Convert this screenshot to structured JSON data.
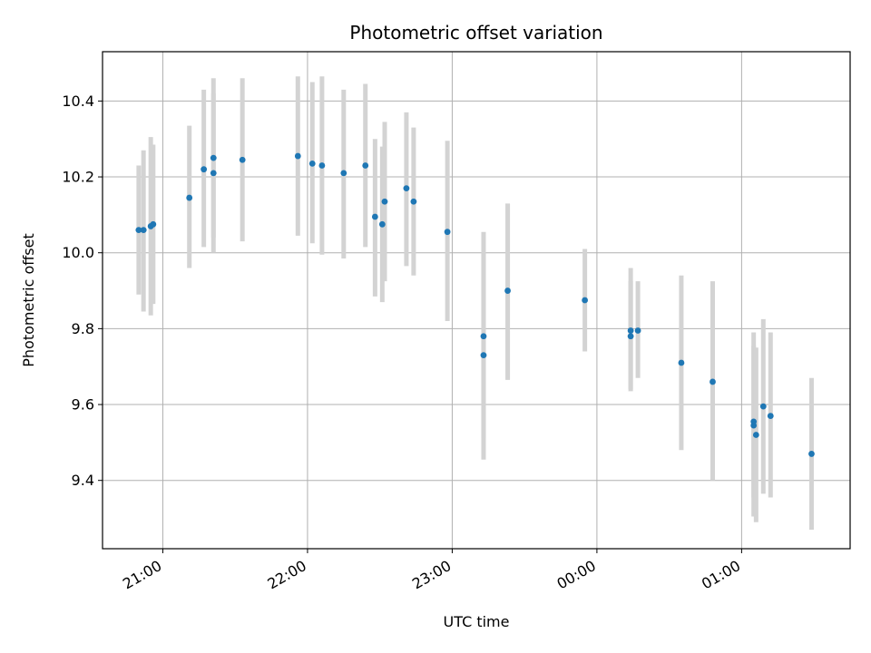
{
  "chart_data": {
    "type": "scatter",
    "title": "Photometric offset variation",
    "xlabel": "UTC time",
    "ylabel": "Photometric offset",
    "x_scale": "time",
    "xlim": [
      "20:35",
      "01:45"
    ],
    "ylim": [
      9.22,
      10.53
    ],
    "grid": true,
    "x_ticks": [
      {
        "value": "21:00",
        "label": "21:00"
      },
      {
        "value": "22:00",
        "label": "22:00"
      },
      {
        "value": "23:00",
        "label": "23:00"
      },
      {
        "value": "00:00",
        "label": "00:00"
      },
      {
        "value": "01:00",
        "label": "01:00"
      }
    ],
    "y_ticks": [
      {
        "value": 9.4,
        "label": "9.4"
      },
      {
        "value": 9.6,
        "label": "9.6"
      },
      {
        "value": 9.8,
        "label": "9.8"
      },
      {
        "value": 10.0,
        "label": "10.0"
      },
      {
        "value": 10.2,
        "label": "10.2"
      },
      {
        "value": 10.4,
        "label": "10.4"
      }
    ],
    "colors": {
      "point": "#1f77b4",
      "errorbar": "#d3d3d3",
      "grid": "#b0b0b0"
    },
    "points": [
      {
        "x": "20:50",
        "y": 10.06,
        "ylow": 9.89,
        "yhigh": 10.23
      },
      {
        "x": "20:52",
        "y": 10.06,
        "ylow": 9.845,
        "yhigh": 10.27
      },
      {
        "x": "20:55",
        "y": 10.07,
        "ylow": 9.835,
        "yhigh": 10.305
      },
      {
        "x": "20:56",
        "y": 10.075,
        "ylow": 9.865,
        "yhigh": 10.285
      },
      {
        "x": "21:11",
        "y": 10.145,
        "ylow": 9.96,
        "yhigh": 10.335
      },
      {
        "x": "21:17",
        "y": 10.22,
        "ylow": 10.015,
        "yhigh": 10.43
      },
      {
        "x": "21:21",
        "y": 10.25,
        "ylow": 10.04,
        "yhigh": 10.46
      },
      {
        "x": "21:21",
        "y": 10.21,
        "ylow": 10.0,
        "yhigh": 10.42
      },
      {
        "x": "21:33",
        "y": 10.245,
        "ylow": 10.03,
        "yhigh": 10.46
      },
      {
        "x": "21:56",
        "y": 10.255,
        "ylow": 10.045,
        "yhigh": 10.465
      },
      {
        "x": "22:02",
        "y": 10.235,
        "ylow": 10.025,
        "yhigh": 10.45
      },
      {
        "x": "22:06",
        "y": 10.23,
        "ylow": 9.995,
        "yhigh": 10.465
      },
      {
        "x": "22:15",
        "y": 10.21,
        "ylow": 9.985,
        "yhigh": 10.43
      },
      {
        "x": "22:24",
        "y": 10.23,
        "ylow": 10.015,
        "yhigh": 10.445
      },
      {
        "x": "22:28",
        "y": 10.095,
        "ylow": 9.885,
        "yhigh": 10.3
      },
      {
        "x": "22:31",
        "y": 10.075,
        "ylow": 9.87,
        "yhigh": 10.28
      },
      {
        "x": "22:32",
        "y": 10.135,
        "ylow": 9.925,
        "yhigh": 10.345
      },
      {
        "x": "22:41",
        "y": 10.17,
        "ylow": 9.965,
        "yhigh": 10.37
      },
      {
        "x": "22:44",
        "y": 10.135,
        "ylow": 9.94,
        "yhigh": 10.33
      },
      {
        "x": "22:58",
        "y": 10.055,
        "ylow": 9.82,
        "yhigh": 10.295
      },
      {
        "x": "23:13",
        "y": 9.78,
        "ylow": 9.51,
        "yhigh": 10.055
      },
      {
        "x": "23:13",
        "y": 9.73,
        "ylow": 9.455,
        "yhigh": 10.0
      },
      {
        "x": "23:23",
        "y": 9.9,
        "ylow": 9.665,
        "yhigh": 10.13
      },
      {
        "x": "23:55",
        "y": 9.875,
        "ylow": 9.74,
        "yhigh": 10.01
      },
      {
        "x": "00:14",
        "y": 9.795,
        "ylow": 9.635,
        "yhigh": 9.96
      },
      {
        "x": "00:14",
        "y": 9.78,
        "ylow": 9.64,
        "yhigh": 9.925
      },
      {
        "x": "00:17",
        "y": 9.795,
        "ylow": 9.67,
        "yhigh": 9.925
      },
      {
        "x": "00:35",
        "y": 9.71,
        "ylow": 9.48,
        "yhigh": 9.94
      },
      {
        "x": "00:48",
        "y": 9.66,
        "ylow": 9.4,
        "yhigh": 9.925
      },
      {
        "x": "01:05",
        "y": 9.545,
        "ylow": 9.305,
        "yhigh": 9.79
      },
      {
        "x": "01:05",
        "y": 9.555,
        "ylow": 9.355,
        "yhigh": 9.755
      },
      {
        "x": "01:06",
        "y": 9.52,
        "ylow": 9.29,
        "yhigh": 9.75
      },
      {
        "x": "01:09",
        "y": 9.595,
        "ylow": 9.365,
        "yhigh": 9.825
      },
      {
        "x": "01:12",
        "y": 9.57,
        "ylow": 9.355,
        "yhigh": 9.79
      },
      {
        "x": "01:29",
        "y": 9.47,
        "ylow": 9.27,
        "yhigh": 9.67
      }
    ]
  }
}
